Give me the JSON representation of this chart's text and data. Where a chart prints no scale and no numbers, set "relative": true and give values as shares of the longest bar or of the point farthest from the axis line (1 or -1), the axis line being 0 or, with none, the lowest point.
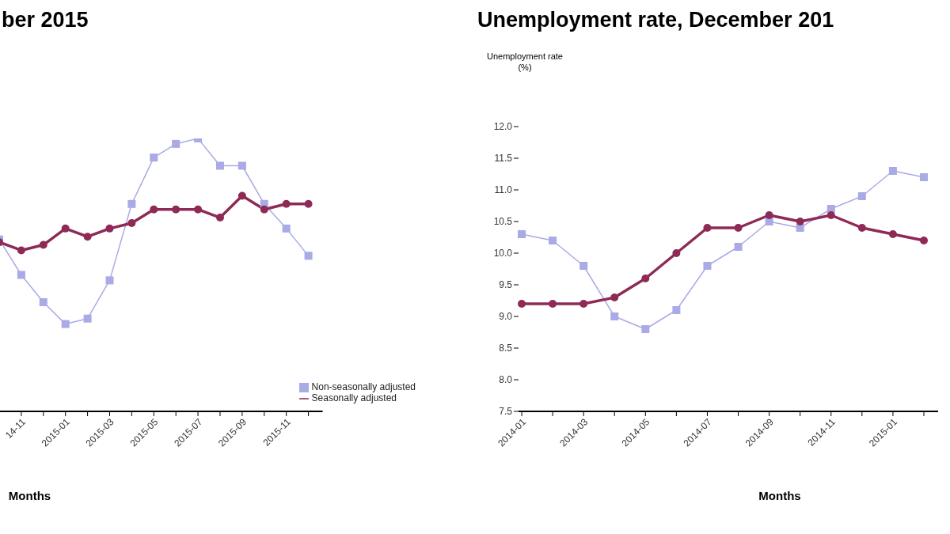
{
  "chart_data": [
    {
      "type": "line",
      "title": "ber 2015",
      "xlabel": "Months",
      "relative": true,
      "legend": "bottom right",
      "grid": false,
      "categories": [
        null,
        "14-11",
        null,
        "2015-01",
        null,
        "2015-03",
        null,
        "2015-05",
        null,
        "2015-07",
        null,
        "2015-09",
        null,
        "2015-11",
        null
      ],
      "series": [
        {
          "name": "Non-seasonally adjusted",
          "color": "#a9aae6",
          "marker": "square",
          "values": [
            0.63,
            0.5,
            0.4,
            0.32,
            0.34,
            0.48,
            0.76,
            0.93,
            0.98,
            1,
            0.9,
            0.9,
            0.76,
            0.67,
            0.57
          ]
        },
        {
          "name": "Seasonally adjusted",
          "color": "#8e2a55",
          "marker": "circle",
          "values": [
            0.62,
            0.59,
            0.61,
            0.67,
            0.64,
            0.67,
            0.69,
            0.74,
            0.74,
            0.74,
            0.71,
            0.79,
            0.74,
            0.76,
            0.76
          ]
        }
      ]
    },
    {
      "type": "line",
      "title": "Unemployment rate, December 201",
      "xlabel": "Months",
      "ylabel": "Unemployment rate\n(%)",
      "grid": false,
      "legend": false,
      "categories": [
        "2014-01",
        null,
        "2014-03",
        null,
        "2014-05",
        null,
        "2014-07",
        null,
        "2014-09",
        null,
        "2014-11",
        null,
        "2015-01",
        null
      ],
      "ylim": [
        7.5,
        12
      ],
      "yticks": [
        {
          "value": 7.5,
          "label": "7.5"
        },
        {
          "value": 8,
          "label": "8.0"
        },
        {
          "value": 8.5,
          "label": "8.5"
        },
        {
          "value": 9,
          "label": "9.0"
        },
        {
          "value": 9.5,
          "label": "9.5"
        },
        {
          "value": 10,
          "label": "10.0"
        },
        {
          "value": 10.5,
          "label": "10.5"
        },
        {
          "value": 11,
          "label": "11.0"
        },
        {
          "value": 11.5,
          "label": "11.5"
        },
        {
          "value": 12,
          "label": "12.0"
        }
      ],
      "series": [
        {
          "color": "#a9aae6",
          "marker": "square",
          "values": [
            10.3,
            10.2,
            9.8,
            9.0,
            8.8,
            9.1,
            9.8,
            10.1,
            10.5,
            10.4,
            10.7,
            10.9,
            11.3,
            11.2
          ]
        },
        {
          "color": "#8e2a55",
          "marker": "circle",
          "values": [
            9.2,
            9.2,
            9.2,
            9.3,
            9.6,
            10.0,
            10.4,
            10.4,
            10.6,
            10.5,
            10.6,
            10.4,
            10.3,
            10.2
          ]
        }
      ]
    }
  ]
}
